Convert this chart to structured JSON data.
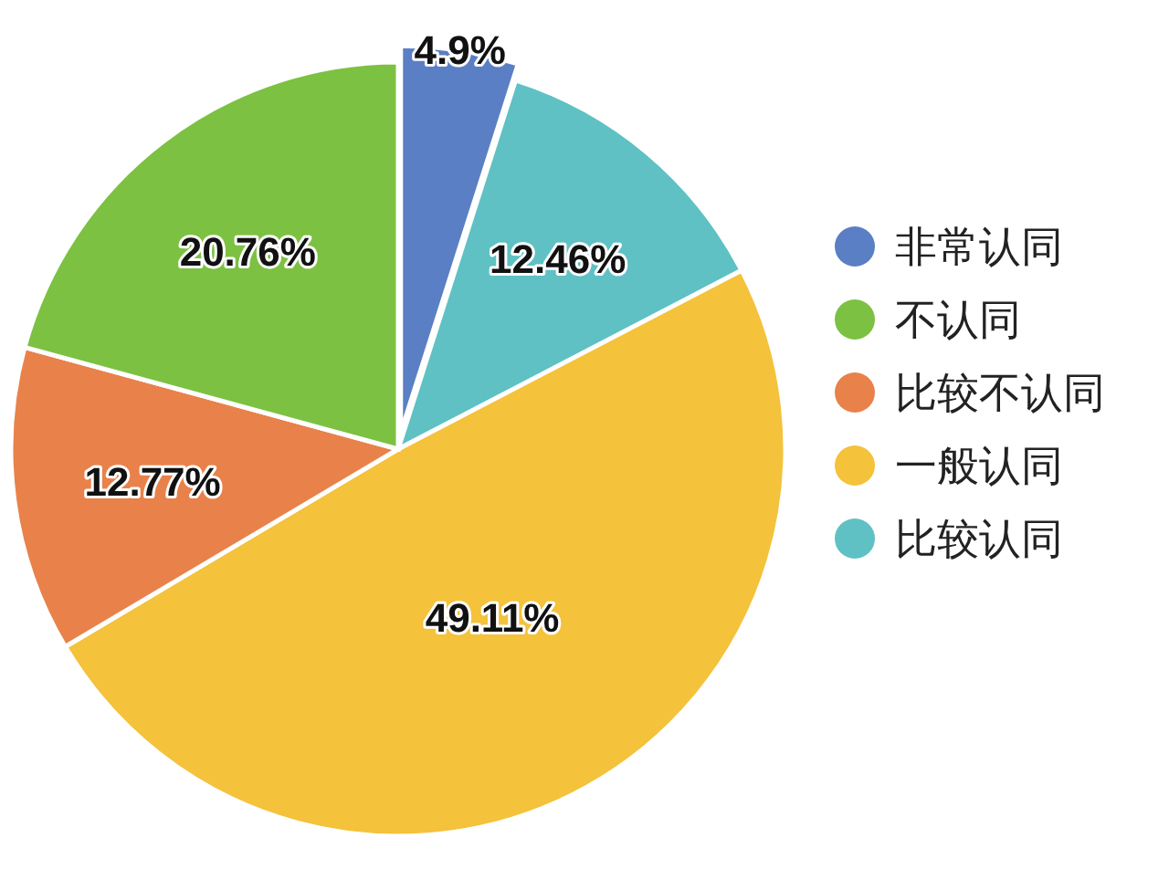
{
  "chart_data": {
    "type": "pie",
    "categories": [
      "非常认同",
      "不认同",
      "比较不认同",
      "一般认同",
      "比较认同"
    ],
    "values": [
      4.9,
      20.76,
      12.77,
      49.11,
      12.46
    ],
    "colors": [
      "#5b7fc4",
      "#7cc142",
      "#e8824a",
      "#f4c23b",
      "#5fc1c3"
    ],
    "value_labels": [
      "4.9%",
      "20.76%",
      "12.77%",
      "49.11%",
      "12.46%"
    ],
    "legend": "right"
  }
}
